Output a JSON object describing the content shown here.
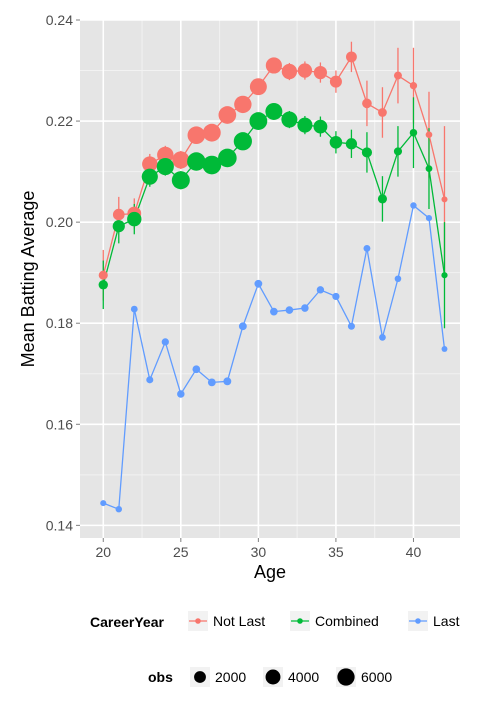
{
  "chart_data": {
    "type": "line",
    "xlabel": "Age",
    "ylabel": "Mean Batting Average",
    "xlim": [
      18.5,
      43.0
    ],
    "ylim": [
      0.1375,
      0.24
    ],
    "x_ticks": [
      20,
      25,
      30,
      35,
      40
    ],
    "y_ticks": [
      0.14,
      0.16,
      0.18,
      0.2,
      0.22,
      0.24
    ],
    "x_tick_labels": [
      "20",
      "25",
      "30",
      "35",
      "40"
    ],
    "y_tick_labels": [
      "0.14",
      "0.16",
      "0.18",
      "0.20",
      "0.22",
      "0.24"
    ],
    "grid": true,
    "legend_position": "bottom",
    "color_legend": {
      "title": "CareerYear",
      "entries": [
        "Not Last",
        "Combined",
        "Last"
      ]
    },
    "size_legend": {
      "title": "obs",
      "values": [
        2000,
        4000,
        6000
      ],
      "labels": [
        "2000",
        "4000",
        "6000"
      ]
    },
    "series": [
      {
        "name": "Not Last",
        "color": "#F8766D",
        "x": [
          20,
          21,
          22,
          23,
          24,
          25,
          26,
          27,
          28,
          29,
          30,
          31,
          32,
          33,
          34,
          35,
          36,
          37,
          38,
          39,
          40,
          41,
          42
        ],
        "y": [
          0.1895,
          0.2015,
          0.2017,
          0.2115,
          0.2133,
          0.2123,
          0.2172,
          0.2177,
          0.2212,
          0.2233,
          0.2268,
          0.231,
          0.2298,
          0.23,
          0.2296,
          0.2278,
          0.2327,
          0.2235,
          0.2217,
          0.229,
          0.227,
          0.2173,
          0.2045
        ],
        "err": [
          0.005,
          0.0035,
          0.003,
          0.002,
          0.0018,
          0.0018,
          0.0015,
          0.0015,
          0.0015,
          0.0015,
          0.0015,
          0.0015,
          0.0017,
          0.0018,
          0.002,
          0.0022,
          0.003,
          0.0045,
          0.005,
          0.0055,
          0.0075,
          0.0085,
          0.0145
        ],
        "obs": [
          800,
          1900,
          3200,
          4400,
          5200,
          5900,
          6300,
          6500,
          6400,
          6100,
          5700,
          5000,
          4300,
          3600,
          2800,
          2100,
          1500,
          1000,
          700,
          450,
          300,
          180,
          100
        ]
      },
      {
        "name": "Combined",
        "color": "#00BA38",
        "x": [
          20,
          21,
          22,
          23,
          24,
          25,
          26,
          27,
          28,
          29,
          30,
          31,
          32,
          33,
          34,
          35,
          36,
          37,
          38,
          39,
          40,
          41,
          42
        ],
        "y": [
          0.1876,
          0.1992,
          0.2006,
          0.209,
          0.211,
          0.2083,
          0.212,
          0.2113,
          0.2127,
          0.216,
          0.22,
          0.2219,
          0.2203,
          0.2192,
          0.2189,
          0.2158,
          0.2155,
          0.2138,
          0.2046,
          0.214,
          0.2177,
          0.2106,
          0.1895
        ],
        "err": [
          0.0048,
          0.0034,
          0.003,
          0.002,
          0.0018,
          0.0018,
          0.0015,
          0.0015,
          0.0015,
          0.0015,
          0.0015,
          0.0015,
          0.0017,
          0.0018,
          0.002,
          0.0022,
          0.0028,
          0.004,
          0.0045,
          0.005,
          0.007,
          0.008,
          0.0105
        ],
        "obs": [
          900,
          2200,
          3600,
          5000,
          5900,
          6700,
          7100,
          7400,
          7300,
          6900,
          6500,
          5700,
          4900,
          4100,
          3200,
          2400,
          1700,
          1200,
          800,
          500,
          350,
          200,
          120
        ]
      },
      {
        "name": "Last",
        "color": "#619CFF",
        "x": [
          20,
          21,
          22,
          23,
          24,
          25,
          26,
          27,
          28,
          29,
          30,
          31,
          32,
          33,
          34,
          35,
          36,
          37,
          38,
          39,
          40,
          41,
          42
        ],
        "y": [
          0.1444,
          0.1432,
          0.1828,
          0.1688,
          0.1763,
          0.166,
          0.1709,
          0.1683,
          0.1685,
          0.1794,
          0.1878,
          0.1823,
          0.1826,
          0.183,
          0.1866,
          0.1853,
          0.1794,
          0.1948,
          0.1772,
          0.1888,
          0.2033,
          0.2008,
          0.1749
        ],
        "obs": [
          100,
          150,
          200,
          250,
          300,
          350,
          400,
          420,
          430,
          430,
          420,
          400,
          380,
          350,
          320,
          290,
          260,
          230,
          200,
          170,
          140,
          110,
          80
        ]
      }
    ]
  }
}
